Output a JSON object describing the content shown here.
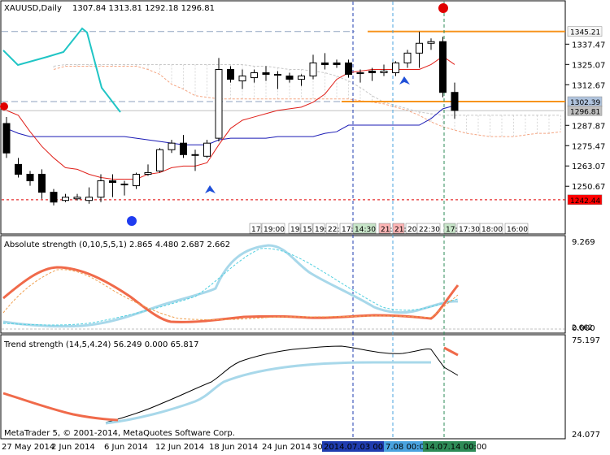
{
  "main": {
    "symbol": "XAUUSD,Daily",
    "ohlc": "1307.84 1313.81 1292.18 1296.81",
    "price_axis": [
      {
        "v": 1337.47,
        "label": "1337.47"
      },
      {
        "v": 1325.07,
        "label": "1325.07"
      },
      {
        "v": 1312.67,
        "label": "1312.67"
      },
      {
        "v": 1287.87,
        "label": "1287.87"
      },
      {
        "v": 1275.47,
        "label": "1275.47"
      },
      {
        "v": 1263.07,
        "label": "1263.07"
      },
      {
        "v": 1250.67,
        "label": "1250.67"
      }
    ],
    "price_tags": [
      {
        "v": 1345.21,
        "label": "1345.21",
        "bg": "#f5f5f5",
        "fg": "#000000"
      },
      {
        "v": 1302.39,
        "label": "1302.39",
        "bg": "#b0c4de",
        "fg": "#000000"
      },
      {
        "v": 1296.81,
        "label": "1296.81",
        "bg": "#c0c0c0",
        "fg": "#ffffff"
      },
      {
        "v": 1242.44,
        "label": "1242.44",
        "bg": "#ff0000",
        "fg": "#000000"
      }
    ],
    "session_labels": [
      "17:",
      "19:00",
      "19:",
      "15:",
      "19:",
      "22:",
      "17:",
      "14:30",
      "21:",
      "21:",
      "20:",
      "22:30",
      "17:",
      "17:30",
      "18:00",
      "16:00"
    ],
    "candles": [
      {
        "o": 1289.0,
        "h": 1293.0,
        "c": 1271.0,
        "l": 1268.0
      },
      {
        "o": 1264.0,
        "h": 1268.0,
        "c": 1258.0,
        "l": 1256.0
      },
      {
        "o": 1258.0,
        "h": 1260.0,
        "c": 1254.0,
        "l": 1251.0
      },
      {
        "o": 1258.0,
        "h": 1261.0,
        "c": 1247.0,
        "l": 1243.0
      },
      {
        "o": 1247.0,
        "h": 1249.0,
        "c": 1241.0,
        "l": 1239.0
      },
      {
        "o": 1242.0,
        "h": 1246.0,
        "c": 1244.0,
        "l": 1241.0
      },
      {
        "o": 1243.0,
        "h": 1246.0,
        "c": 1244.0,
        "l": 1242.0
      },
      {
        "o": 1242.0,
        "h": 1250.0,
        "c": 1244.0,
        "l": 1240.0
      },
      {
        "o": 1244.0,
        "h": 1258.0,
        "c": 1254.0,
        "l": 1241.0
      },
      {
        "o": 1254.0,
        "h": 1258.0,
        "c": 1253.0,
        "l": 1244.0
      },
      {
        "o": 1252.0,
        "h": 1254.0,
        "c": 1252.0,
        "l": 1245.0
      },
      {
        "o": 1251.0,
        "h": 1259.0,
        "c": 1258.0,
        "l": 1249.0
      },
      {
        "o": 1258.0,
        "h": 1264.0,
        "c": 1259.0,
        "l": 1257.0
      },
      {
        "o": 1260.0,
        "h": 1274.0,
        "c": 1273.0,
        "l": 1259.0
      },
      {
        "o": 1273.0,
        "h": 1279.0,
        "c": 1277.0,
        "l": 1271.0
      },
      {
        "o": 1277.0,
        "h": 1282.0,
        "c": 1270.0,
        "l": 1268.0
      },
      {
        "o": 1270.0,
        "h": 1273.0,
        "c": 1270.0,
        "l": 1260.0
      },
      {
        "o": 1269.0,
        "h": 1279.0,
        "c": 1277.0,
        "l": 1268.0
      },
      {
        "o": 1280.0,
        "h": 1329.0,
        "c": 1322.0,
        "l": 1278.0
      },
      {
        "o": 1322.0,
        "h": 1324.0,
        "c": 1316.0,
        "l": 1314.0
      },
      {
        "o": 1315.0,
        "h": 1322.0,
        "c": 1318.0,
        "l": 1310.0
      },
      {
        "o": 1317.0,
        "h": 1322.0,
        "c": 1320.0,
        "l": 1314.0
      },
      {
        "o": 1320.0,
        "h": 1324.0,
        "c": 1319.0,
        "l": 1315.0
      },
      {
        "o": 1319.0,
        "h": 1321.0,
        "c": 1319.0,
        "l": 1310.0
      },
      {
        "o": 1318.0,
        "h": 1320.0,
        "c": 1316.0,
        "l": 1314.0
      },
      {
        "o": 1316.0,
        "h": 1319.0,
        "c": 1318.0,
        "l": 1312.0
      },
      {
        "o": 1318.0,
        "h": 1331.0,
        "c": 1326.0,
        "l": 1316.0
      },
      {
        "o": 1326.0,
        "h": 1332.0,
        "c": 1325.0,
        "l": 1322.0
      },
      {
        "o": 1326.0,
        "h": 1328.0,
        "c": 1325.0,
        "l": 1323.0
      },
      {
        "o": 1326.0,
        "h": 1328.0,
        "c": 1319.0,
        "l": 1317.0
      },
      {
        "o": 1320.0,
        "h": 1322.0,
        "c": 1320.0,
        "l": 1314.0
      },
      {
        "o": 1321.0,
        "h": 1323.0,
        "c": 1320.0,
        "l": 1315.0
      },
      {
        "o": 1320.0,
        "h": 1325.0,
        "c": 1321.0,
        "l": 1318.0
      },
      {
        "o": 1320.0,
        "h": 1327.0,
        "c": 1326.0,
        "l": 1318.0
      },
      {
        "o": 1326.0,
        "h": 1334.0,
        "c": 1332.0,
        "l": 1323.0
      },
      {
        "o": 1332.0,
        "h": 1345.0,
        "c": 1338.0,
        "l": 1323.0
      },
      {
        "o": 1338.0,
        "h": 1341.0,
        "c": 1339.0,
        "l": 1334.0
      },
      {
        "o": 1339.0,
        "h": 1342.0,
        "c": 1308.0,
        "l": 1305.0
      },
      {
        "o": 1308.0,
        "h": 1314.0,
        "c": 1297.0,
        "l": 1292.0
      }
    ],
    "tenkan": [
      1297,
      1294,
      1284,
      1275,
      1268,
      1262,
      1261,
      1258,
      1256,
      1255,
      1255,
      1255,
      1258,
      1259,
      1262,
      1263,
      1263,
      1265,
      1276,
      1286,
      1291,
      1293,
      1295,
      1297,
      1298,
      1299,
      1302,
      1307,
      1316,
      1320,
      1321,
      1322,
      1322,
      1322,
      1322,
      1322,
      1325,
      1330,
      1325
    ],
    "kijun": [
      1286,
      1283,
      1281,
      1281,
      1281,
      1281,
      1281,
      1281,
      1281,
      1281,
      1281,
      1280,
      1279,
      1278,
      1277,
      1276,
      1276,
      1276,
      1279,
      1280,
      1280,
      1280,
      1280,
      1281,
      1281,
      1281,
      1281,
      1283,
      1284,
      1288,
      1288,
      1288,
      1288,
      1288,
      1288,
      1288,
      1292,
      1298,
      1300
    ],
    "chikou": [
      1324,
      1318,
      1325,
      1335,
      1343,
      1339,
      1331,
      1312,
      1302,
      1300,
      1299,
      1300
    ],
    "span_a": [
      1322,
      1324,
      1324,
      1324,
      1324,
      1324,
      1324,
      1324,
      1322,
      1319,
      1313,
      1310,
      1306,
      1305,
      1304,
      1304,
      1304,
      1304,
      1304,
      1304,
      1304,
      1304,
      1304,
      1304,
      1304,
      1304,
      1303,
      1302,
      1301,
      1299,
      1297,
      1294,
      1290,
      1287,
      1285,
      1283,
      1282,
      1281,
      1281,
      1281,
      1282,
      1283,
      1283,
      1284,
      1286,
      1285,
      1284,
      1283,
      1282
    ],
    "span_b": [
      1324,
      1325,
      1325,
      1325,
      1325,
      1325,
      1325,
      1325,
      1325,
      1325,
      1325,
      1325,
      1325,
      1325,
      1325,
      1325,
      1325,
      1324,
      1324,
      1323,
      1322,
      1322,
      1321,
      1320,
      1318,
      1315,
      1311,
      1306,
      1302,
      1300,
      1298,
      1296,
      1295,
      1294,
      1294,
      1294,
      1294,
      1294,
      1294,
      1294,
      1294,
      1294,
      1294,
      1294,
      1294,
      1294,
      1294,
      1294,
      1294
    ],
    "markers": {
      "red_top_circle": 1345.21,
      "blue_bottom_circle": 1242.44,
      "red_left_circle": 1302.39
    }
  },
  "sub1": {
    "title": "Absolute strength (0,10,5,5,1) 2.865 4.480 2.687 2.662",
    "axis_top": "9.269",
    "axis_bottom": "0.000",
    "axis_tag": "2.662",
    "colors": {
      "bulls": "#87ceeb",
      "bears": "#ff6347"
    }
  },
  "sub2": {
    "title": "Trend strength (14,5,4.24) 56.249 0.000 65.817",
    "axis_top": "75.197",
    "axis_bottom": "24.077",
    "copyright": "MetaTrader 5, © 2001-2014, MetaQuotes Software Corp."
  },
  "time_axis": {
    "labels": [
      "27 May 2014",
      "2 Jun 2014",
      "6 Jun 2014",
      "12 Jun 2014",
      "18 Jun 2014",
      "24 Jun 2014",
      "30"
    ],
    "markers": [
      {
        "label": "2014.07.03 00:00",
        "bg": "#1f3cb0"
      },
      {
        "label": "7.08 00:00",
        "bg": "#4aa3df"
      },
      {
        "label": "14.07.14 00:00",
        "bg": "#2e8b57"
      }
    ]
  }
}
